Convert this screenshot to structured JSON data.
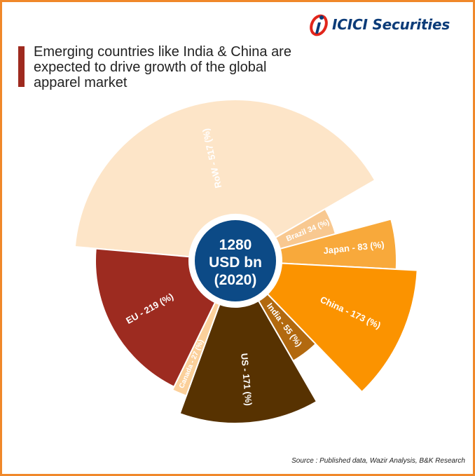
{
  "brand": {
    "logo_text": "ICICI Securities",
    "logo_mark": "icici-logo-icon",
    "logo_color": "#0b3b78",
    "logo_accent": "#e1251b"
  },
  "title": "Emerging countries like India & China are expected to drive growth of the global apparel market",
  "center": {
    "line1": "1280",
    "line2": "USD bn",
    "line3": "(2020)",
    "color": "#0c4a86"
  },
  "source": "Source : Published data, Wazir Analysis, B&K Research",
  "chart_data": {
    "type": "pie",
    "variant": "radial-bar",
    "total": 1280,
    "unit": "USD bn",
    "year": "2020",
    "slices": [
      {
        "name": "RoW",
        "label": "RoW - 517 (%)",
        "value": 517,
        "color": "#fde5c8"
      },
      {
        "name": "Brazil",
        "label": "Brazil 34 (%)",
        "value": 34,
        "color": "#f8c890"
      },
      {
        "name": "Japan",
        "label": "Japan - 83 (%)",
        "value": 83,
        "color": "#f8a93b"
      },
      {
        "name": "China",
        "label": "China - 173 (%)",
        "value": 173,
        "color": "#fb9300"
      },
      {
        "name": "India",
        "label": "India - 55 (%)",
        "value": 55,
        "color": "#b2690f"
      },
      {
        "name": "US",
        "label": "US - 171 (%)",
        "value": 171,
        "color": "#573201"
      },
      {
        "name": "Canada",
        "label": "Canada - 27 (%)",
        "value": 27,
        "color": "#fbd09b"
      },
      {
        "name": "EU",
        "label": "EU - 219 (%)",
        "value": 219,
        "color": "#9d2b20"
      }
    ]
  }
}
